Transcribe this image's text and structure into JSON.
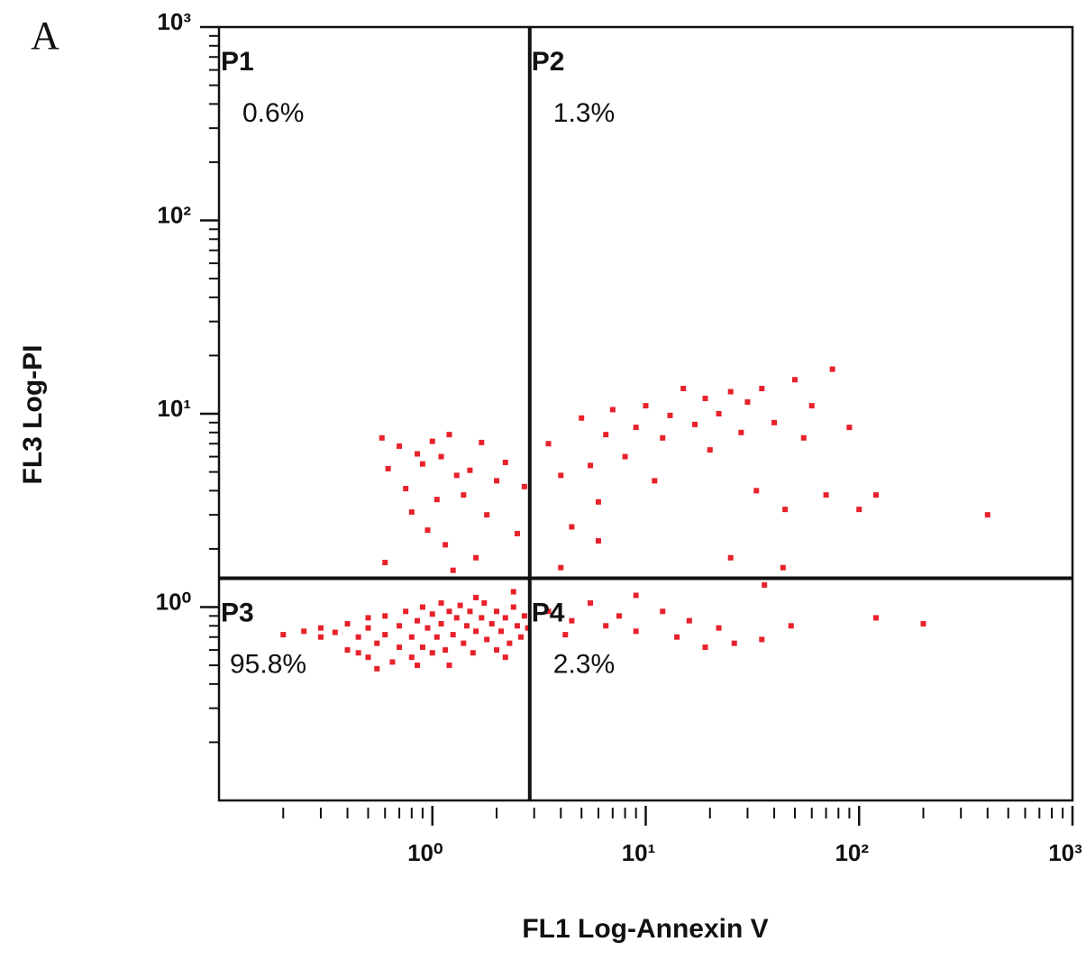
{
  "chart_data": {
    "type": "scatter",
    "panel": "A",
    "xlabel": "FL1 Log-Annexin V",
    "ylabel": "FL3 Log-PI",
    "xscale": "log",
    "yscale": "log",
    "minor_ticks": true,
    "xlim": [
      0.1,
      1000
    ],
    "ylim": [
      0.1,
      1000
    ],
    "xticks": [
      {
        "value": 1,
        "label": "10⁰"
      },
      {
        "value": 10,
        "label": "10¹"
      },
      {
        "value": 100,
        "label": "10²"
      },
      {
        "value": 1000,
        "label": "10³"
      }
    ],
    "yticks": [
      {
        "value": 1,
        "label": "10⁰"
      },
      {
        "value": 10,
        "label": "10¹"
      },
      {
        "value": 100,
        "label": "10²"
      },
      {
        "value": 1000,
        "label": "10³"
      }
    ],
    "x_gate": 2.86,
    "y_gate": 1.41,
    "quadrants": [
      {
        "name": "P1",
        "label": "0.6%"
      },
      {
        "name": "P2",
        "label": "1.3%"
      },
      {
        "name": "P3",
        "label": "95.8%"
      },
      {
        "name": "P4",
        "label": "2.3%"
      }
    ],
    "color": "#e8212a",
    "x": [
      0.58,
      0.62,
      0.7,
      0.75,
      0.85,
      0.9,
      1.0,
      1.05,
      1.1,
      1.2,
      1.3,
      1.4,
      1.5,
      1.7,
      1.8,
      2.0,
      2.2,
      2.5,
      2.7,
      0.95,
      1.15,
      1.6,
      0.6,
      0.8,
      1.25,
      3.5,
      4.0,
      4.5,
      5,
      5.5,
      6,
      6.5,
      7,
      8,
      9,
      10,
      11,
      12,
      13,
      15,
      17,
      19,
      20,
      22,
      25,
      28,
      30,
      33,
      35,
      40,
      45,
      50,
      55,
      60,
      70,
      75,
      90,
      100,
      120,
      400,
      25,
      36,
      44,
      6,
      4,
      3.5,
      4.5,
      5.5,
      6.5,
      7.5,
      9,
      12,
      14,
      16,
      19,
      22,
      26,
      35,
      48,
      120,
      200,
      9,
      4.2,
      0.2,
      0.25,
      0.3,
      0.3,
      0.35,
      0.4,
      0.4,
      0.45,
      0.5,
      0.5,
      0.5,
      0.55,
      0.6,
      0.6,
      0.65,
      0.7,
      0.7,
      0.75,
      0.8,
      0.8,
      0.85,
      0.9,
      0.9,
      0.95,
      1.0,
      1.0,
      1.05,
      1.1,
      1.1,
      1.15,
      1.2,
      1.25,
      1.3,
      1.35,
      1.4,
      1.45,
      1.5,
      1.55,
      1.6,
      1.7,
      1.75,
      1.8,
      1.9,
      2.0,
      2.0,
      2.1,
      2.2,
      2.3,
      2.4,
      2.5,
      2.6,
      2.7,
      2.8,
      1.2,
      0.55,
      1.6,
      2.4,
      0.45,
      0.85,
      2.2
    ],
    "values": [
      7.5,
      5.2,
      6.8,
      4.1,
      6.2,
      5.5,
      7.2,
      3.6,
      6.0,
      7.8,
      4.8,
      3.8,
      5.1,
      7.1,
      3.0,
      4.5,
      5.6,
      2.4,
      4.2,
      2.5,
      2.1,
      1.8,
      1.7,
      3.1,
      1.55,
      7.0,
      4.8,
      2.6,
      9.5,
      5.4,
      3.5,
      7.8,
      10.5,
      6.0,
      8.5,
      11.0,
      4.5,
      7.5,
      9.8,
      13.5,
      8.8,
      12.0,
      6.5,
      10.0,
      13.0,
      8.0,
      11.5,
      4.0,
      13.5,
      9.0,
      3.2,
      15.0,
      7.5,
      11.0,
      3.8,
      17.0,
      8.5,
      3.2,
      3.8,
      3.0,
      1.8,
      1.3,
      1.6,
      2.2,
      1.6,
      0.95,
      0.85,
      1.05,
      0.8,
      0.9,
      0.75,
      0.95,
      0.7,
      0.85,
      0.62,
      0.78,
      0.65,
      0.68,
      0.8,
      0.88,
      0.82,
      1.15,
      0.72,
      0.72,
      0.75,
      0.7,
      0.78,
      0.74,
      0.6,
      0.82,
      0.7,
      0.55,
      0.78,
      0.88,
      0.65,
      0.72,
      0.9,
      0.52,
      0.8,
      0.62,
      0.95,
      0.7,
      0.55,
      0.85,
      1.0,
      0.62,
      0.78,
      0.92,
      0.58,
      0.7,
      1.05,
      0.82,
      0.6,
      0.95,
      0.72,
      0.88,
      1.02,
      0.65,
      0.8,
      0.95,
      0.58,
      0.75,
      0.88,
      1.05,
      0.68,
      0.82,
      0.6,
      0.95,
      0.75,
      0.88,
      0.65,
      1.0,
      0.8,
      0.7,
      0.9,
      0.78,
      0.5,
      0.48,
      1.12,
      1.2,
      0.58,
      0.5,
      0.55
    ]
  }
}
